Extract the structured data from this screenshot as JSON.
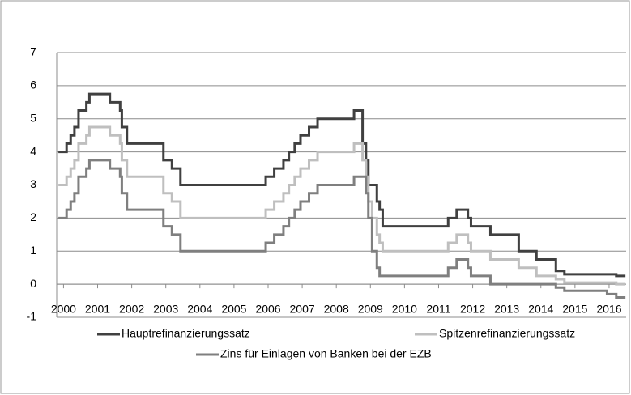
{
  "chart_data": {
    "type": "line",
    "step": true,
    "x": [
      1999.85,
      2000.09,
      2000.21,
      2000.32,
      2000.44,
      2000.67,
      2000.76,
      2001.36,
      2001.66,
      2001.71,
      2001.86,
      2002.93,
      2003.18,
      2003.43,
      2005.93,
      2006.18,
      2006.45,
      2006.61,
      2006.78,
      2006.95,
      2007.2,
      2007.45,
      2008.52,
      2008.77,
      2008.87,
      2008.94,
      2009.05,
      2009.19,
      2009.27,
      2009.36,
      2011.28,
      2011.53,
      2011.86,
      2011.95,
      2012.52,
      2013.35,
      2013.87,
      2014.44,
      2014.69,
      2015.94,
      2016.21,
      2016.48
    ],
    "series": [
      {
        "name": "Hauptrefinanzierungssatz",
        "color": "#404040",
        "values": [
          4,
          4.25,
          4.5,
          4.75,
          5.25,
          5.5,
          5.75,
          5.5,
          5.25,
          4.75,
          4.25,
          3.75,
          3.5,
          3,
          3.25,
          3.5,
          3.75,
          4,
          4.25,
          4.5,
          4.75,
          5,
          5.25,
          4.25,
          3.75,
          3,
          3,
          2.5,
          2.25,
          1.75,
          2,
          2.25,
          2,
          1.75,
          1.5,
          1,
          0.75,
          0.4,
          0.3,
          0.3,
          0.25,
          0.25
        ]
      },
      {
        "name": "Spitzenrefinanzierungssatz",
        "color": "#bfbfbf",
        "values": [
          3,
          3.25,
          3.5,
          3.75,
          4.25,
          4.5,
          4.75,
          4.5,
          4.25,
          3.75,
          3.25,
          2.75,
          2.5,
          2,
          2.25,
          2.5,
          2.75,
          3,
          3.25,
          3.5,
          3.75,
          4,
          4.25,
          3.75,
          3.25,
          2.5,
          2,
          1.5,
          1.25,
          1,
          1.25,
          1.5,
          1.25,
          1,
          0.75,
          0.5,
          0.25,
          0.15,
          0.05,
          0.05,
          0,
          0
        ]
      },
      {
        "name": "Zins für Einlagen von Banken bei der EZB",
        "color": "#7f7f7f",
        "values": [
          2,
          2.25,
          2.5,
          2.75,
          3.25,
          3.5,
          3.75,
          3.5,
          3.25,
          2.75,
          2.25,
          1.75,
          1.5,
          1,
          1.25,
          1.5,
          1.75,
          2,
          2.25,
          2.5,
          2.75,
          3,
          3.25,
          3.25,
          2.75,
          2,
          1,
          0.5,
          0.25,
          0.25,
          0.5,
          0.75,
          0.5,
          0.25,
          0,
          0,
          0,
          -0.1,
          -0.2,
          -0.3,
          -0.4,
          -0.4
        ]
      }
    ],
    "xlim": [
      1999.8,
      2016.5
    ],
    "xticks": [
      2000,
      2001,
      2002,
      2003,
      2004,
      2005,
      2006,
      2007,
      2008,
      2009,
      2010,
      2011,
      2012,
      2013,
      2014,
      2015,
      2016
    ],
    "ylim": [
      -1,
      7
    ],
    "yticks": [
      -1,
      0,
      1,
      2,
      3,
      4,
      5,
      6,
      7
    ],
    "grid": true
  }
}
